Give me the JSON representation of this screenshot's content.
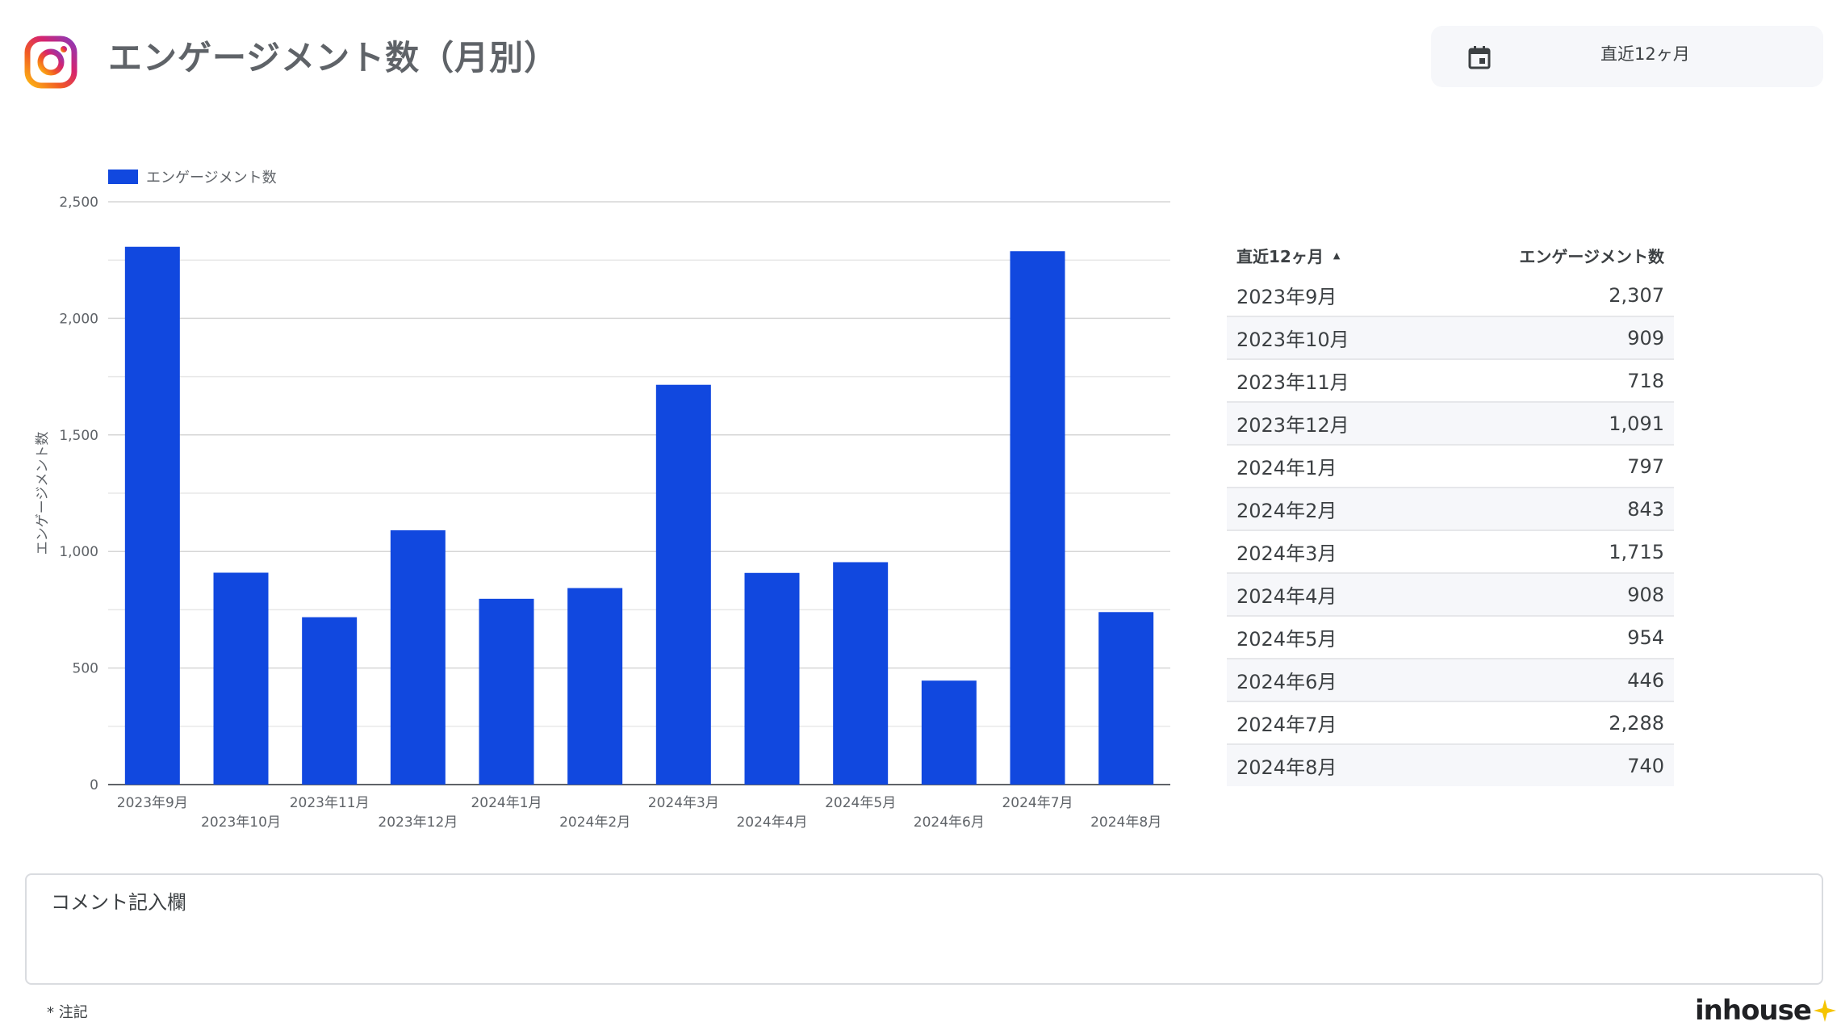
{
  "header": {
    "title": "エンゲージメント数（月別）",
    "logo_icon": "instagram-icon",
    "date_filter": {
      "label": "直近12ヶ月",
      "icon": "calendar-icon"
    }
  },
  "chart_data": {
    "type": "bar",
    "categories": [
      "2023年9月",
      "2023年10月",
      "2023年11月",
      "2023年12月",
      "2024年1月",
      "2024年2月",
      "2024年3月",
      "2024年4月",
      "2024年5月",
      "2024年6月",
      "2024年7月",
      "2024年8月"
    ],
    "series": [
      {
        "name": "エンゲージメント数",
        "values": [
          2307,
          909,
          718,
          1091,
          797,
          843,
          1715,
          908,
          954,
          446,
          2288,
          740
        ],
        "color": "#1148df"
      }
    ],
    "xlabel": "",
    "ylabel": "エンゲージメント数",
    "ylim": [
      0,
      2500
    ],
    "yticks": [
      0,
      500,
      1000,
      1500,
      2000,
      2500
    ],
    "ytick_labels": [
      "0",
      "500",
      "1,000",
      "1,500",
      "2,000",
      "2,500"
    ],
    "grid": true,
    "legend": "top-left"
  },
  "table": {
    "headers": [
      "直近12ヶ月",
      "エンゲージメント数"
    ],
    "rows": [
      [
        "2023年9月",
        "2,307"
      ],
      [
        "2023年10月",
        "909"
      ],
      [
        "2023年11月",
        "718"
      ],
      [
        "2023年12月",
        "1,091"
      ],
      [
        "2024年1月",
        "797"
      ],
      [
        "2024年2月",
        "843"
      ],
      [
        "2024年3月",
        "1,715"
      ],
      [
        "2024年4月",
        "908"
      ],
      [
        "2024年5月",
        "954"
      ],
      [
        "2024年6月",
        "446"
      ],
      [
        "2024年7月",
        "2,288"
      ],
      [
        "2024年8月",
        "740"
      ]
    ]
  },
  "comment": {
    "label": "コメント記入欄"
  },
  "footer": {
    "note": "* 注記",
    "brand": "inhouse",
    "brand_color": "#f5c400"
  }
}
